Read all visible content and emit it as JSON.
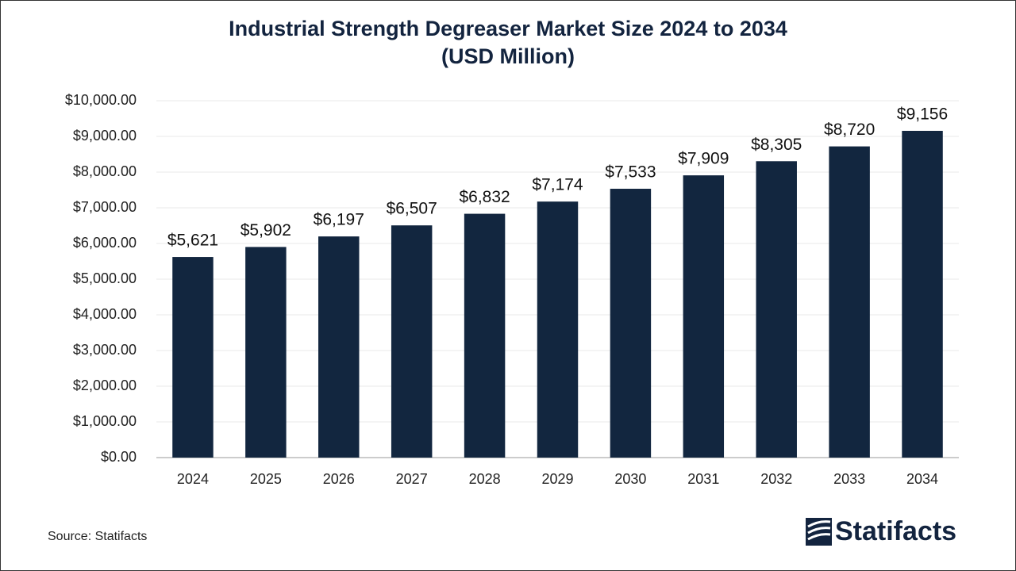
{
  "chart_data": {
    "type": "bar",
    "title": "Industrial Strength Degreaser Market Size 2024 to 2034",
    "subtitle": "(USD Million)",
    "categories": [
      "2024",
      "2025",
      "2026",
      "2027",
      "2028",
      "2029",
      "2030",
      "2031",
      "2032",
      "2033",
      "2034"
    ],
    "values": [
      5621,
      5902,
      6197,
      6507,
      6832,
      7174,
      7533,
      7909,
      8305,
      8720,
      9156
    ],
    "value_labels": [
      "$5,621",
      "$5,902",
      "$6,197",
      "$6,507",
      "$6,832",
      "$7,174",
      "$7,533",
      "$7,909",
      "$8,305",
      "$8,720",
      "$9,156"
    ],
    "color": "#12263f",
    "ylim": [
      0,
      10000
    ],
    "yticks": [
      {
        "value": 0,
        "label": "$0.00"
      },
      {
        "value": 1000,
        "label": "$1,000.00"
      },
      {
        "value": 2000,
        "label": "$2,000.00"
      },
      {
        "value": 3000,
        "label": "$3,000.00"
      },
      {
        "value": 4000,
        "label": "$4,000.00"
      },
      {
        "value": 5000,
        "label": "$5,000.00"
      },
      {
        "value": 6000,
        "label": "$6,000.00"
      },
      {
        "value": 7000,
        "label": "$7,000.00"
      },
      {
        "value": 8000,
        "label": "$8,000.00"
      },
      {
        "value": 9000,
        "label": "$9,000.00"
      },
      {
        "value": 10000,
        "label": "$10,000.00"
      }
    ],
    "grid": true
  },
  "source": "Source: Statifacts",
  "logo": "Statifacts"
}
